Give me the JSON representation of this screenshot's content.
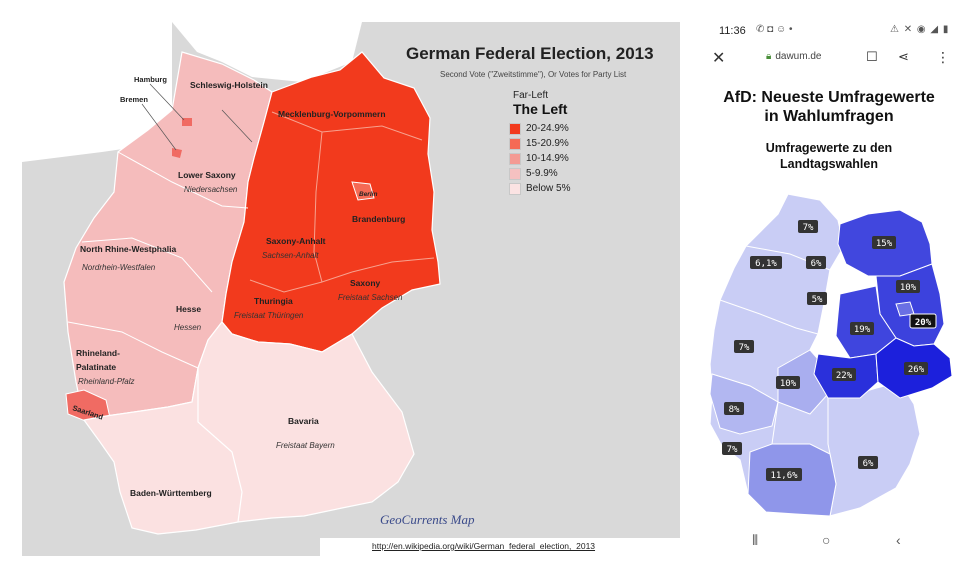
{
  "left_map": {
    "title": "German Federal Election, 2013",
    "subtitle": "Second Vote (\"Zweitstimme\"), Or Votes for Party List",
    "legend": {
      "category": "Far-Left",
      "party": "The Left",
      "items": [
        {
          "label": "20-24.9%",
          "color": "#f23a1d"
        },
        {
          "label": "15-20.9%",
          "color": "#f56a55"
        },
        {
          "label": "10-14.9%",
          "color": "#f49a93"
        },
        {
          "label": "5-9.9%",
          "color": "#f5c1c1"
        },
        {
          "label": "Below 5%",
          "color": "#fbe3e3"
        }
      ]
    },
    "credit": "GeoCurrents Map",
    "source_url": "http://en.wikipedia.org/wiki/German_federal_election,_2013",
    "states": {
      "schleswig_holstein": "Schleswig-Holstein",
      "hamburg": "Hamburg",
      "bremen": "Bremen",
      "mecklenburg": "Mecklenburg-Vorpommern",
      "lower_saxony": "Lower Saxony",
      "lower_saxony_local": "Niedersachsen",
      "berlin": "Berlin",
      "brandenburg": "Brandenburg",
      "nrw": "North Rhine-Westphalia",
      "nrw_local": "Nordrhein-Westfalen",
      "saxony_anhalt": "Saxony-Anhalt",
      "saxony_anhalt_local": "Sachsen-Anhalt",
      "saxony": "Saxony",
      "saxony_local": "Freistaat Sachsen",
      "thuringia": "Thuringia",
      "thuringia_local": "Freistaat Thüringen",
      "hesse": "Hesse",
      "hesse_local": "Hessen",
      "rlp_line1": "Rhineland-",
      "rlp_line2": "Palatinate",
      "rlp_local": "Rheinland-Pfalz",
      "saarland": "Saarland",
      "bavaria": "Bavaria",
      "bavaria_local": "Freistaat Bayern",
      "bw": "Baden-Württemberg"
    },
    "colors": {
      "east": "#f23a1d",
      "west": "#f5bcbc",
      "south": "#fbe1e1",
      "background": "#d9d9d9",
      "water": "#ffffff"
    }
  },
  "phone": {
    "status_time": "11:36",
    "status_icons_left": "✆ ◘ ☺ •",
    "status_icons_right": "⚠ ✕ ◉ ◢ ▮",
    "domain": "dawum.de",
    "article_title_line1": "AfD: Neueste Umfragewerte",
    "article_title_line2": "in Wahlumfragen",
    "article_sub_line1": "Umfragewerte zu den",
    "article_sub_line2": "Landtagswahlen",
    "afd_values": {
      "sh": "7%",
      "mv": "15%",
      "ni": "6,1%",
      "hb": "6%",
      "hh": "5%",
      "be": "10%",
      "bb": "20%",
      "st": "19%",
      "nw": "7%",
      "he": "10%",
      "th": "22%",
      "sn": "26%",
      "rp": "8%",
      "sl": "7%",
      "bw": "11,6%",
      "by": "6%"
    },
    "colors": {
      "light": "#c9cdf5",
      "mid": "#8f96ea",
      "strong": "#4147de",
      "darkest": "#1c20dc"
    }
  }
}
